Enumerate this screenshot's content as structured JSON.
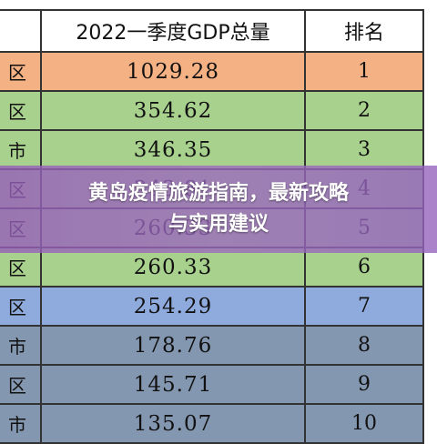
{
  "table": {
    "headers": [
      "",
      "2022一季度GDP总量",
      "排名"
    ],
    "rows": [
      {
        "region": "区",
        "gdp": "1029.28",
        "rank": "1",
        "color": "#f4b183"
      },
      {
        "region": "区",
        "gdp": "354.62",
        "rank": "2",
        "color": "#a9d18e"
      },
      {
        "region": "市",
        "gdp": "346.35",
        "rank": "3",
        "color": "#a9d18e"
      },
      {
        "region": "区",
        "gdp": "343.81",
        "rank": "4",
        "color": "#a9d18e"
      },
      {
        "region": "区",
        "gdp": "260.33",
        "rank": "5",
        "color": "#a9d18e"
      },
      {
        "region": "区",
        "gdp": "260.33",
        "rank": "6",
        "color": "#a9d18e"
      },
      {
        "region": "区",
        "gdp": "254.29",
        "rank": "7",
        "color": "#8faadc"
      },
      {
        "region": "市",
        "gdp": "178.76",
        "rank": "8",
        "color": "#8497b0"
      },
      {
        "region": "区",
        "gdp": "145.71",
        "rank": "9",
        "color": "#8497b0"
      },
      {
        "region": "市",
        "gdp": "135.07",
        "rank": "10",
        "color": "#8497b0"
      }
    ]
  },
  "banner": {
    "line1": "黄岛疫情旅游指南，最新攻略",
    "line2": "与实用建议"
  }
}
